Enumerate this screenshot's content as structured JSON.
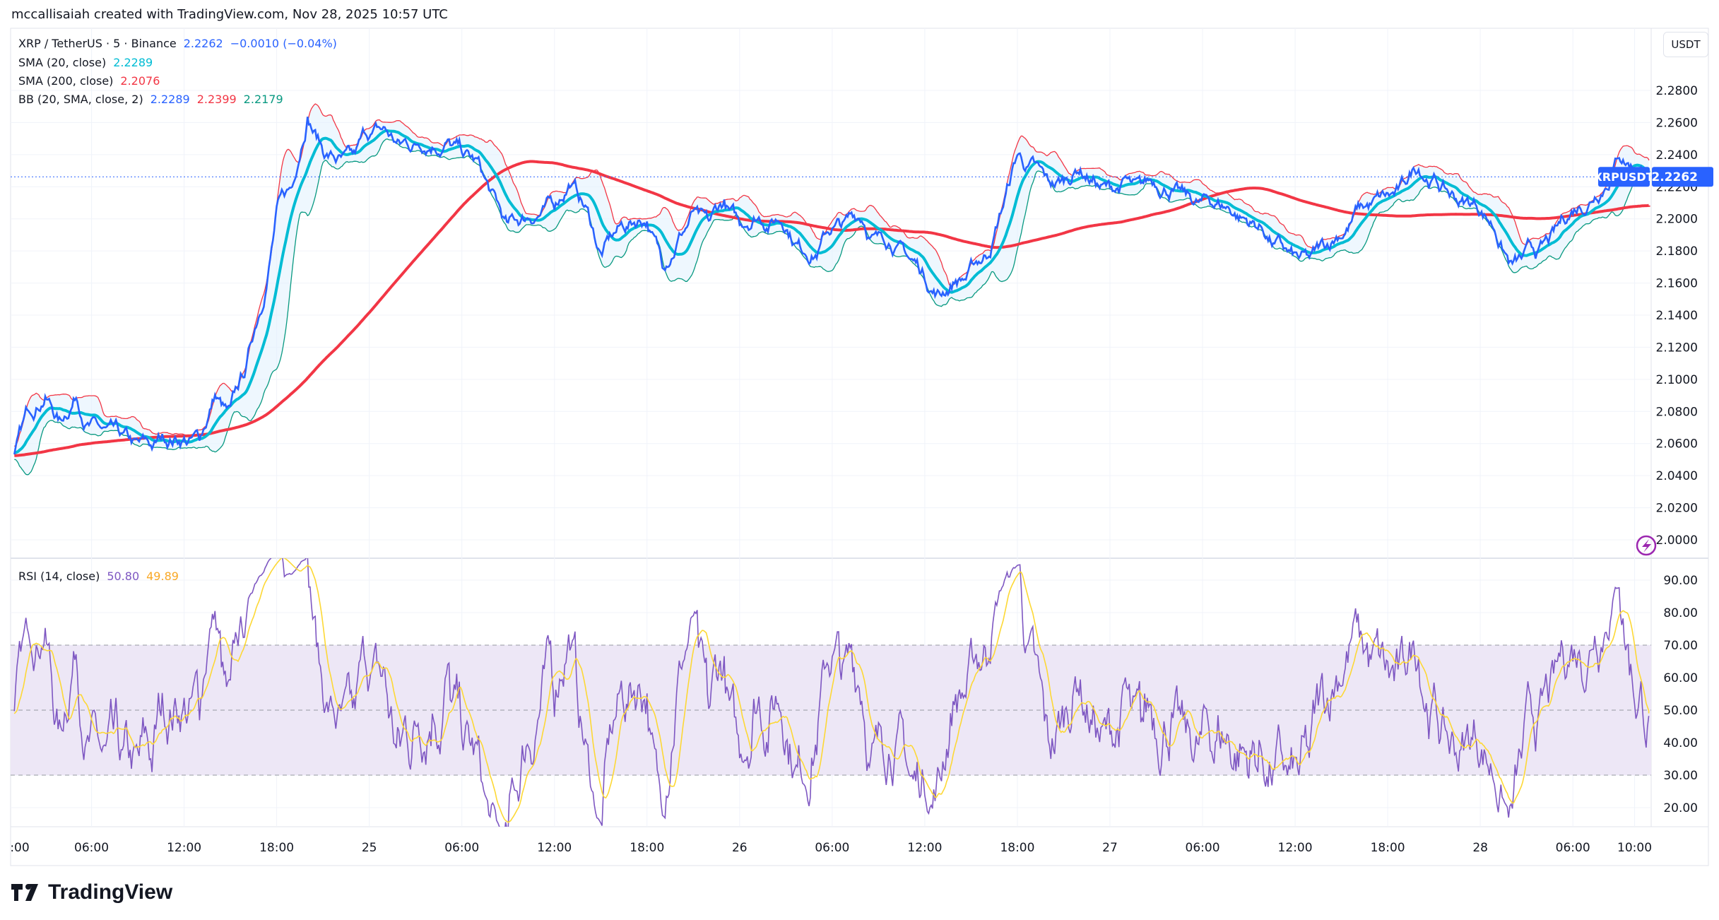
{
  "header": {
    "attribution": "mccallisaiah created with TradingView.com, Nov 28, 2025 10:57 UTC"
  },
  "legend": {
    "symbol": "XRP / TetherUS · 5 · Binance",
    "price": "2.2262",
    "change": "−0.0010 (−0.04%)",
    "sma20_label": "SMA (20, close)",
    "sma20_value": "2.2289",
    "sma200_label": "SMA (200, close)",
    "sma200_value": "2.2076",
    "bb_label": "BB (20, SMA, close, 2)",
    "bb_basis": "2.2289",
    "bb_upper": "2.2399",
    "bb_lower": "2.2179",
    "rsi_label": "RSI (14, close)",
    "rsi_value": "50.80",
    "rsi_ma_value": "49.89"
  },
  "price_axis": {
    "currency": "USDT",
    "symbol_tag": "XRPUSDT",
    "last_price": "2.2262",
    "ticks": [
      "2.2800",
      "2.2600",
      "2.2400",
      "2.2200",
      "2.2000",
      "2.1800",
      "2.1600",
      "2.1400",
      "2.1200",
      "2.1000",
      "2.0800",
      "2.0600",
      "2.0400",
      "2.0200",
      "2.0000"
    ]
  },
  "rsi_axis": {
    "ticks": [
      "90.00",
      "80.00",
      "70.00",
      "60.00",
      "50.00",
      "40.00",
      "30.00",
      "20.00"
    ]
  },
  "time_axis": {
    "labels": [
      ":00",
      "06:00",
      "12:00",
      "18:00",
      "25",
      "06:00",
      "12:00",
      "18:00",
      "26",
      "06:00",
      "12:00",
      "18:00",
      "27",
      "06:00",
      "12:00",
      "18:00",
      "28",
      "06:00",
      "10:00"
    ],
    "label_hours": [
      0,
      6,
      12,
      18,
      24,
      30,
      36,
      42,
      48,
      54,
      60,
      66,
      72,
      78,
      84,
      90,
      96,
      102,
      106
    ]
  },
  "colors": {
    "price": "#2962ff",
    "sma20": "#00bcd4",
    "sma200": "#f23645",
    "bb_upper": "#f23645",
    "bb_lower": "#089981",
    "bb_fill": "#e3f2fd",
    "rsi": "#7e57c2",
    "rsi_ma": "#fdd835",
    "rsi_band": "#ede7f6"
  },
  "chart_data": {
    "type": "line",
    "symbol": "XRPUSDT",
    "interval": "5",
    "ylim": [
      2.0,
      2.29
    ],
    "close_hourly_start": "Nov 24 01:00",
    "close_hourly": [
      2.051,
      2.082,
      2.086,
      2.075,
      2.089,
      2.072,
      2.069,
      2.065,
      2.062,
      2.056,
      2.058,
      2.062,
      2.065,
      2.089,
      2.082,
      2.103,
      2.144,
      2.206,
      2.22,
      2.261,
      2.244,
      2.237,
      2.24,
      2.25,
      2.257,
      2.248,
      2.247,
      2.244,
      2.248,
      2.244,
      2.237,
      2.216,
      2.196,
      2.202,
      2.202,
      2.209,
      2.223,
      2.206,
      2.178,
      2.192,
      2.199,
      2.196,
      2.172,
      2.186,
      2.206,
      2.199,
      2.209,
      2.199,
      2.202,
      2.196,
      2.192,
      2.182,
      2.178,
      2.192,
      2.202,
      2.199,
      2.189,
      2.178,
      2.175,
      2.165,
      2.154,
      2.161,
      2.172,
      2.178,
      2.206,
      2.24,
      2.237,
      2.226,
      2.226,
      2.23,
      2.226,
      2.223,
      2.226,
      2.225,
      2.22,
      2.216,
      2.214,
      2.211,
      2.209,
      2.202,
      2.196,
      2.192,
      2.189,
      2.178,
      2.175,
      2.182,
      2.189,
      2.209,
      2.209,
      2.216,
      2.226,
      2.23,
      2.225,
      2.216,
      2.209,
      2.202,
      2.192,
      2.172,
      2.182,
      2.186,
      2.196,
      2.206,
      2.206,
      2.216,
      2.24,
      2.23,
      2.2262
    ],
    "rsi_ylim": [
      15,
      95
    ],
    "rsi_levels": [
      70,
      50,
      30
    ]
  }
}
